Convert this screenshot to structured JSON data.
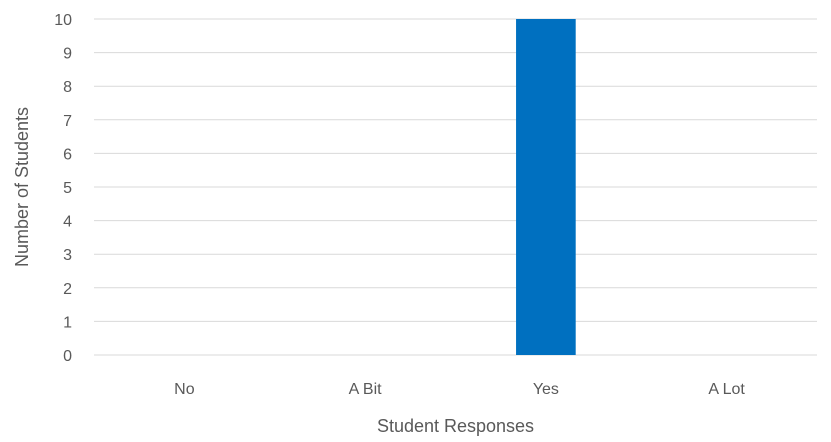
{
  "chart_data": {
    "type": "bar",
    "title": "",
    "xlabel": "Student Responses",
    "ylabel": "Number of Students",
    "categories": [
      "No",
      "A Bit",
      "Yes",
      "A Lot"
    ],
    "values": [
      0,
      0,
      10,
      0
    ],
    "ylim": [
      0,
      10
    ],
    "y_ticks": [
      "0",
      "1",
      "2",
      "3",
      "4",
      "5",
      "6",
      "7",
      "8",
      "9",
      "10"
    ],
    "grid": true,
    "legend": "none",
    "bar_color": "#0070c0"
  }
}
